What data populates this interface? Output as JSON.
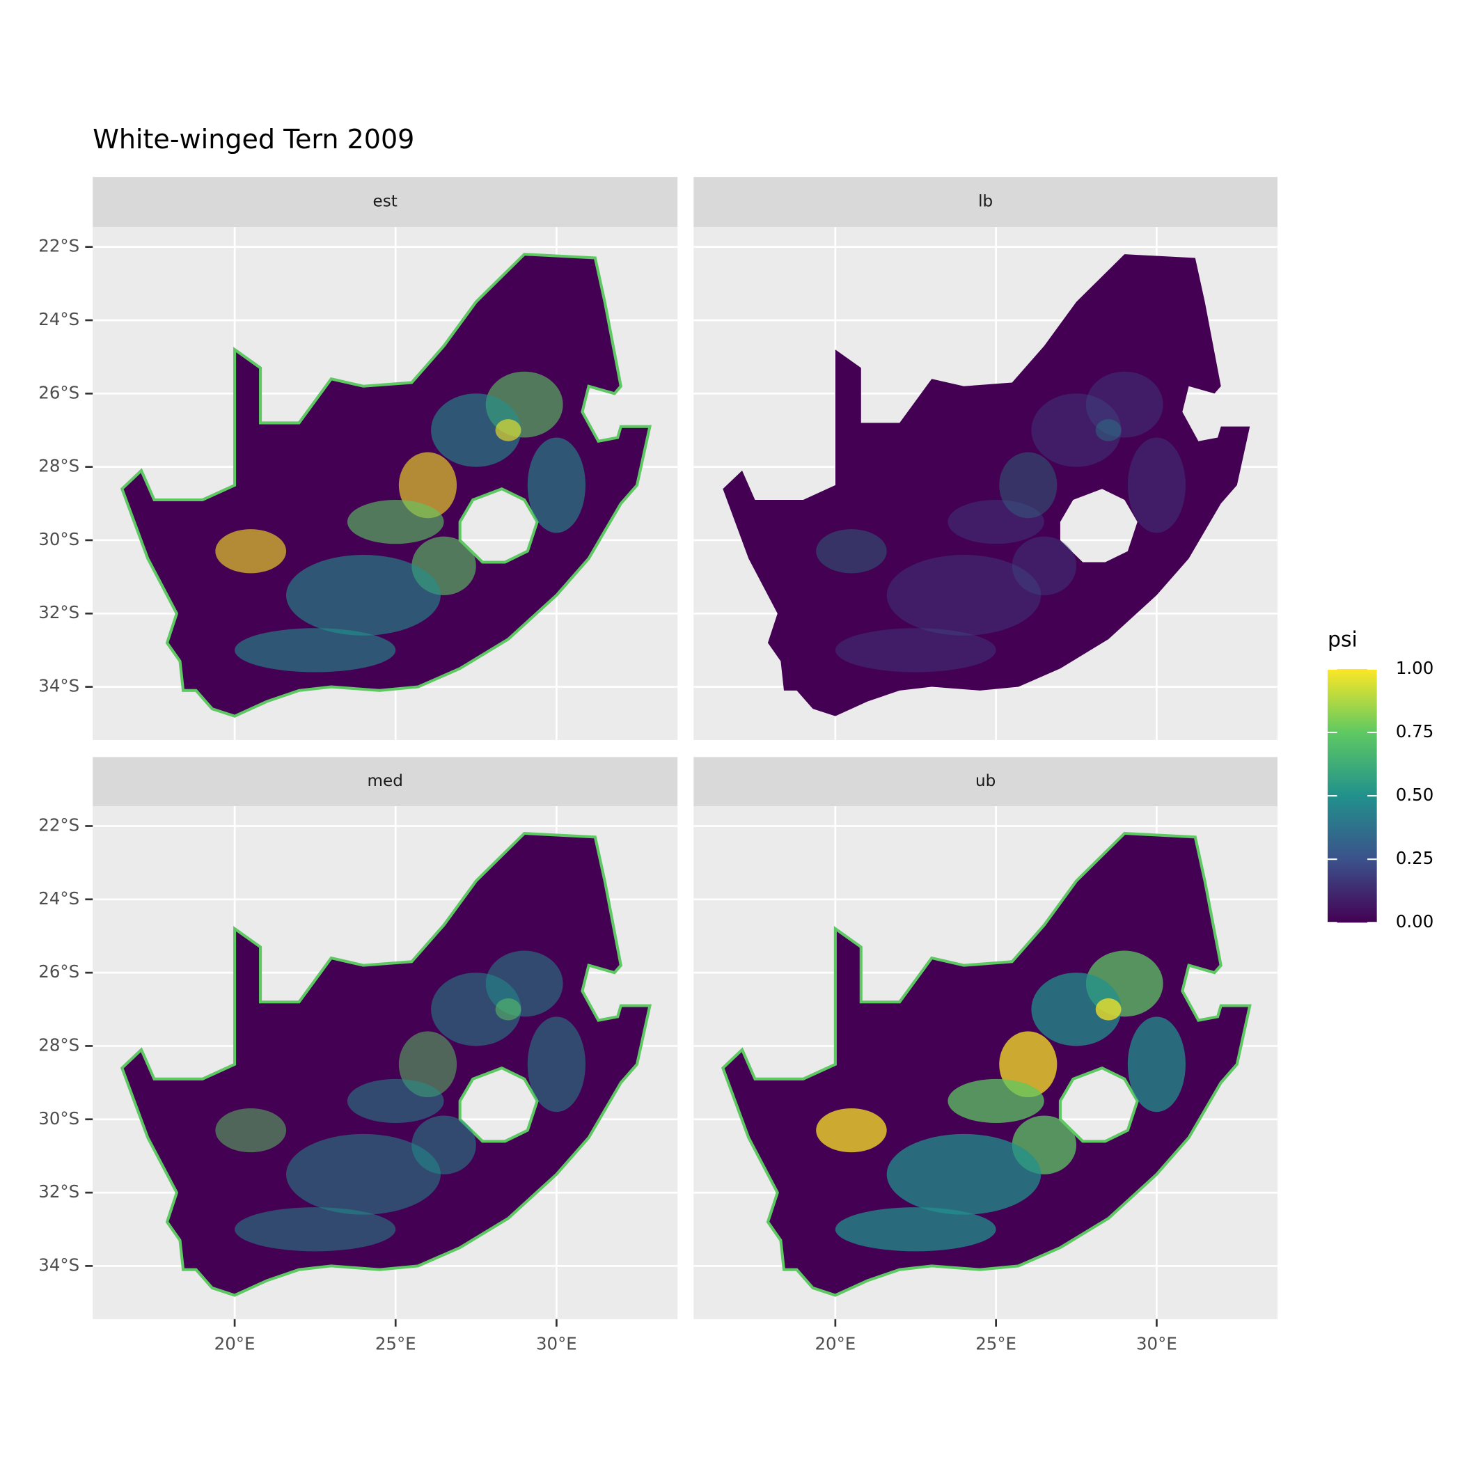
{
  "chart_data": {
    "type": "raster-map",
    "title": "White-winged Tern 2009",
    "facets": [
      "est",
      "lb",
      "med",
      "ub"
    ],
    "xlim": [
      15.59,
      33.76
    ],
    "ylim": [
      -35.45,
      -21.46
    ],
    "xticks": [
      {
        "value": 20,
        "label": "20°E"
      },
      {
        "value": 25,
        "label": "25°E"
      },
      {
        "value": 30,
        "label": "30°E"
      }
    ],
    "yticks": [
      {
        "value": -22,
        "label": "22°S"
      },
      {
        "value": -24,
        "label": "24°S"
      },
      {
        "value": -26,
        "label": "26°S"
      },
      {
        "value": -28,
        "label": "28°S"
      },
      {
        "value": -30,
        "label": "30°S"
      },
      {
        "value": -32,
        "label": "32°S"
      },
      {
        "value": -34,
        "label": "34°S"
      }
    ],
    "legend": {
      "title": "psi",
      "lim": [
        0,
        1
      ],
      "ticks": [
        {
          "value": 0,
          "label": "0.00"
        },
        {
          "value": 0.25,
          "label": "0.25"
        },
        {
          "value": 0.5,
          "label": "0.50"
        },
        {
          "value": 0.75,
          "label": "0.75"
        },
        {
          "value": 1,
          "label": "1.00"
        }
      ],
      "colors": [
        "#440154",
        "#3b528b",
        "#21918c",
        "#5ec962",
        "#fde725"
      ]
    }
  }
}
